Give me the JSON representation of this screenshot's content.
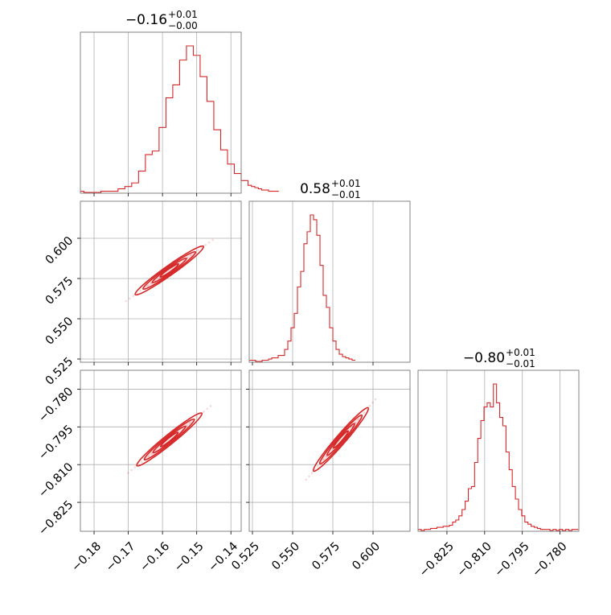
{
  "chart_data": {
    "type": "corner",
    "color": "#d62728",
    "grid": true,
    "params": [
      {
        "title_main": "−0.16",
        "title_sup": "+0.01",
        "title_sub": "−0.00",
        "range": [
          -0.184,
          -0.137
        ],
        "ticks": [
          -0.18,
          -0.17,
          -0.16,
          -0.15,
          -0.14
        ],
        "tick_labels": [
          "−0.18",
          "−0.17",
          "−0.16",
          "−0.15",
          "−0.14"
        ],
        "hist_peak": 0.6875,
        "hist_peak_x": -0.158
      },
      {
        "title_main": "0.58",
        "title_sup": "+0.01",
        "title_sub": "−0.01",
        "range": [
          0.523,
          0.623
        ],
        "ticks": [
          0.525,
          0.55,
          0.575,
          0.6
        ],
        "tick_labels": [
          "0.525",
          "0.550",
          "0.575",
          "0.600"
        ],
        "hist_peak": 0.684,
        "hist_peak_x": 0.58
      },
      {
        "title_main": "−0.80",
        "title_sup": "+0.01",
        "title_sub": "−0.01",
        "range": [
          -0.8365,
          -0.7725
        ],
        "ticks": [
          -0.825,
          -0.81,
          -0.795,
          -0.78
        ],
        "tick_labels": [
          "−0.825",
          "−0.810",
          "−0.795",
          "−0.780"
        ],
        "hist_peak": 0.8,
        "hist_peak_x": -0.8
      }
    ],
    "histograms": [
      {
        "edges_start": -0.184,
        "bin_width": 0.001,
        "counts": [
          1,
          0,
          0,
          0,
          0,
          0,
          1,
          1,
          1,
          1,
          1,
          3,
          3,
          5,
          5,
          8,
          8,
          18,
          18,
          32,
          32,
          35,
          35,
          55,
          55,
          80,
          80,
          91,
          91,
          112,
          112,
          124,
          124,
          116,
          116,
          98,
          98,
          77,
          77,
          53,
          53,
          36,
          36,
          24,
          24,
          16,
          16,
          10,
          10,
          6,
          5,
          4,
          3,
          2,
          2,
          1,
          1,
          1
        ]
      },
      {
        "edges_start": 0.523,
        "bin_width": 0.002,
        "counts": [
          1,
          1,
          0,
          0,
          1,
          1,
          2,
          3,
          3,
          5,
          5,
          10,
          17,
          28,
          40,
          62,
          75,
          98,
          108,
          122,
          118,
          105,
          80,
          55,
          45,
          28,
          17,
          10,
          6,
          4,
          3,
          2,
          1
        ]
      },
      {
        "edges_start": -0.8365,
        "bin_width": 0.00125,
        "counts": [
          1,
          0,
          1,
          1,
          2,
          2,
          3,
          3,
          4,
          4,
          5,
          8,
          10,
          14,
          20,
          28,
          40,
          42,
          65,
          88,
          105,
          118,
          122,
          118,
          140,
          122,
          108,
          100,
          75,
          58,
          42,
          30,
          20,
          14,
          8,
          6,
          4,
          3,
          2,
          1,
          1,
          1,
          0,
          1,
          0,
          1,
          0,
          1,
          0,
          1,
          1
        ]
      }
    ],
    "pairs": [
      {
        "row": 1,
        "col": 0,
        "center": [
          -0.158,
          0.58
        ],
        "slope": 1.5
      },
      {
        "row": 2,
        "col": 0,
        "center": [
          -0.158,
          -0.8
        ],
        "slope": 1.1
      },
      {
        "row": 2,
        "col": 1,
        "center": [
          0.58,
          -0.8
        ],
        "slope": 0.74
      }
    ]
  }
}
